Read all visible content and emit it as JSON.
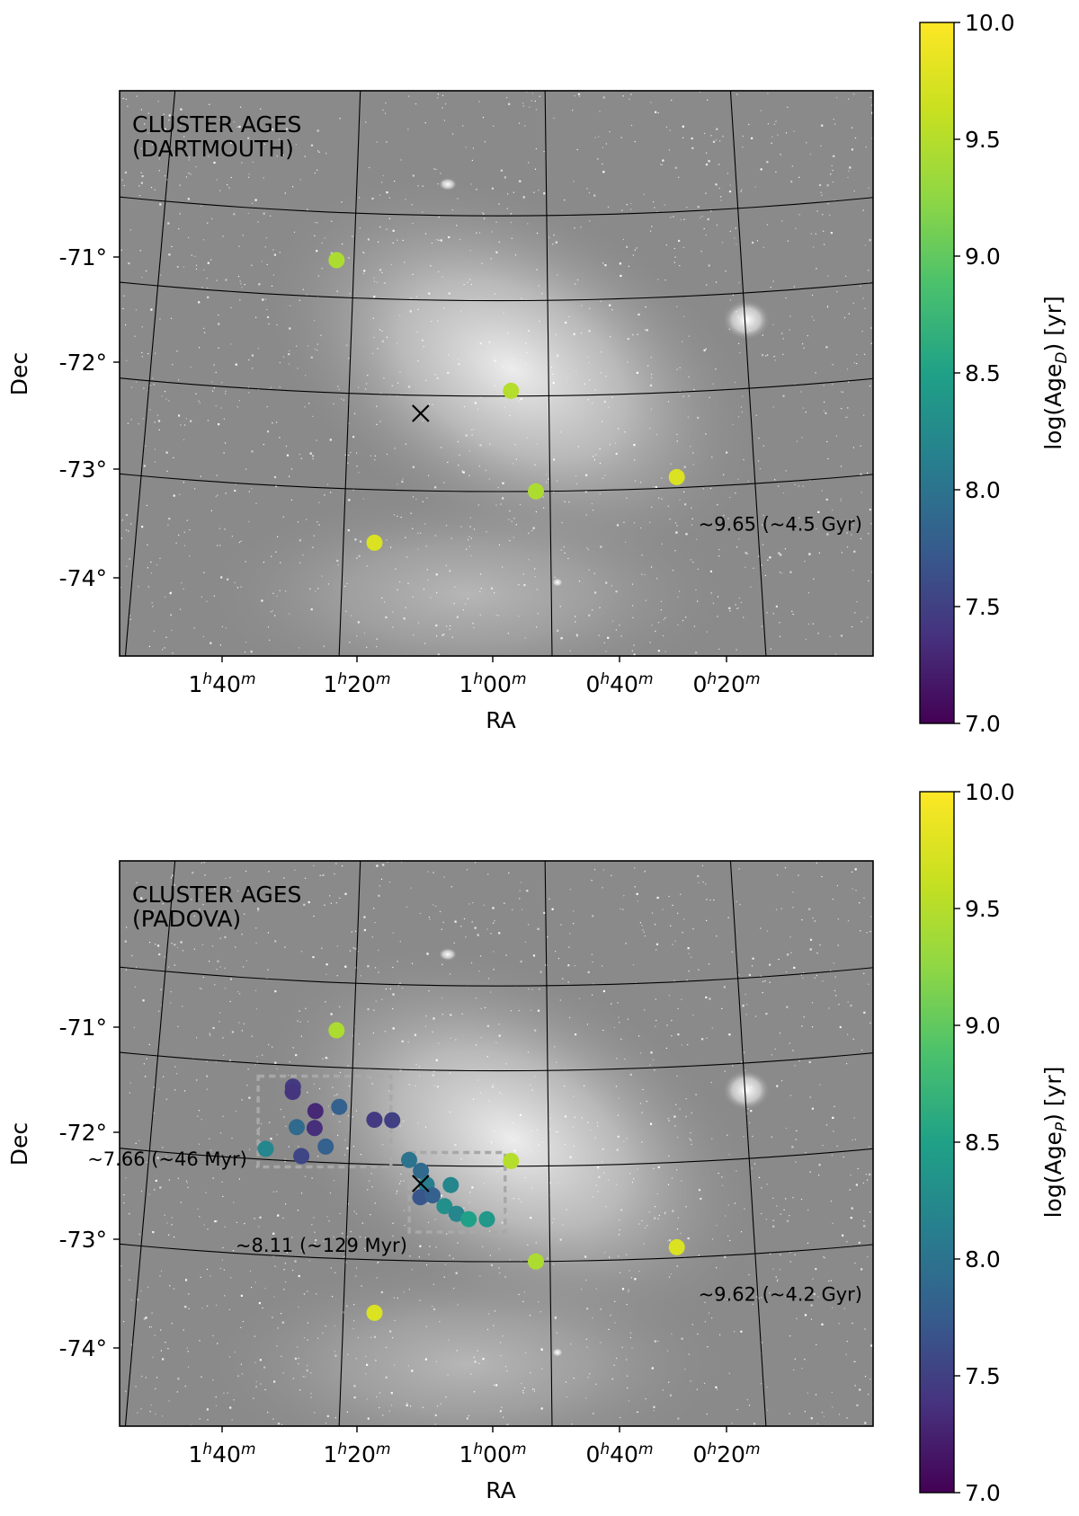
{
  "chart_data": [
    {
      "type": "scatter",
      "panel_label": [
        "CLUSTER AGES",
        "(DARTMOUTH)"
      ],
      "xlabel": "RA",
      "ylabel": "Dec",
      "x_ticks": [
        {
          "h": "1",
          "m": "40"
        },
        {
          "h": "1",
          "m": "20"
        },
        {
          "h": "1",
          "m": "00"
        },
        {
          "h": "0",
          "m": "40"
        },
        {
          "h": "0",
          "m": "20"
        }
      ],
      "y_ticks": [
        "-71°",
        "-72°",
        "-73°",
        "-74°"
      ],
      "colorbar": {
        "label_prefix": "log(Age",
        "label_sub": "D",
        "label_suffix": ") [yr]",
        "range": [
          7.0,
          10.0
        ],
        "ticks": [
          "10.0",
          "9.5",
          "9.0",
          "8.5",
          "8.0",
          "7.5",
          "7.0"
        ]
      },
      "center_marker": {
        "ra_h": 0.88,
        "dec": -72.37
      },
      "annotations": [
        {
          "text": "~9.65 (~4.5 Gyr)",
          "anchor": "right",
          "ra_h": 0.165,
          "dec": -73.55
        }
      ],
      "boxes": [],
      "points": [
        {
          "ra_h": 1.03,
          "dec": -70.95,
          "log_age": 9.45
        },
        {
          "ra_h": 0.73,
          "dec": -72.15,
          "log_age": 9.5
        },
        {
          "ra_h": 0.69,
          "dec": -73.1,
          "log_age": 9.45
        },
        {
          "ra_h": 0.46,
          "dec": -73.0,
          "log_age": 9.75
        },
        {
          "ra_h": 0.0,
          "dec": -73.1,
          "log_age": 9.7
        },
        {
          "ra_h": 0.95,
          "dec": -73.6,
          "log_age": 9.75
        },
        {
          "ra_h": 1.82,
          "dec": -73.65,
          "log_age": 9.5
        }
      ]
    },
    {
      "type": "scatter",
      "panel_label": [
        "CLUSTER AGES",
        "(PADOVA)"
      ],
      "xlabel": "RA",
      "ylabel": "Dec",
      "x_ticks": [
        {
          "h": "1",
          "m": "40"
        },
        {
          "h": "1",
          "m": "20"
        },
        {
          "h": "1",
          "m": "00"
        },
        {
          "h": "0",
          "m": "40"
        },
        {
          "h": "0",
          "m": "20"
        }
      ],
      "y_ticks": [
        "-71°",
        "-72°",
        "-73°",
        "-74°"
      ],
      "colorbar": {
        "label_prefix": "log(Age",
        "label_sub": "P",
        "label_suffix": ") [yr]",
        "range": [
          7.0,
          10.0
        ],
        "ticks": [
          "10.0",
          "9.5",
          "9.0",
          "8.5",
          "8.0",
          "7.5",
          "7.0"
        ]
      },
      "center_marker": {
        "ra_h": 0.88,
        "dec": -72.37
      },
      "annotations": [
        {
          "text": "~7.66 (~46 Myr)",
          "anchor": "right",
          "ra_h": 1.17,
          "dec": -72.2
        },
        {
          "text": "~8.11 (~129 Myr)",
          "anchor": "right",
          "ra_h": 0.9,
          "dec": -72.95
        },
        {
          "text": "~9.62 (~4.2 Gyr)",
          "anchor": "right",
          "ra_h": 0.165,
          "dec": -73.55
        }
      ],
      "boxes": [
        {
          "ra_min": 0.93,
          "ra_max": 1.16,
          "dec_min": -72.22,
          "dec_max": -71.42
        },
        {
          "ra_min": 0.74,
          "ra_max": 0.9,
          "dec_min": -72.82,
          "dec_max": -72.08
        }
      ],
      "points": [
        {
          "ra_h": 1.1,
          "dec": -71.5,
          "log_age": 7.45
        },
        {
          "ra_h": 1.1,
          "dec": -71.55,
          "log_age": 7.4
        },
        {
          "ra_h": 1.06,
          "dec": -71.72,
          "log_age": 7.3
        },
        {
          "ra_h": 1.02,
          "dec": -71.67,
          "log_age": 7.8
        },
        {
          "ra_h": 0.96,
          "dec": -71.78,
          "log_age": 7.45
        },
        {
          "ra_h": 0.93,
          "dec": -71.78,
          "log_age": 7.5
        },
        {
          "ra_h": 1.09,
          "dec": -71.88,
          "log_age": 7.9
        },
        {
          "ra_h": 1.06,
          "dec": -71.88,
          "log_age": 7.35
        },
        {
          "ra_h": 1.04,
          "dec": -72.05,
          "log_age": 7.8
        },
        {
          "ra_h": 1.08,
          "dec": -72.15,
          "log_age": 7.55
        },
        {
          "ra_h": 1.14,
          "dec": -72.1,
          "log_age": 8.2
        },
        {
          "ra_h": 0.9,
          "dec": -72.15,
          "log_age": 8.0
        },
        {
          "ra_h": 0.88,
          "dec": -72.25,
          "log_age": 7.9
        },
        {
          "ra_h": 0.87,
          "dec": -72.38,
          "log_age": 8.1
        },
        {
          "ra_h": 0.83,
          "dec": -72.38,
          "log_age": 8.2
        },
        {
          "ra_h": 0.88,
          "dec": -72.5,
          "log_age": 7.7
        },
        {
          "ra_h": 0.86,
          "dec": -72.48,
          "log_age": 7.8
        },
        {
          "ra_h": 0.84,
          "dec": -72.58,
          "log_age": 8.3
        },
        {
          "ra_h": 0.82,
          "dec": -72.65,
          "log_age": 8.2
        },
        {
          "ra_h": 0.8,
          "dec": -72.7,
          "log_age": 8.5
        },
        {
          "ra_h": 0.77,
          "dec": -72.7,
          "log_age": 8.4
        },
        {
          "ra_h": 0.73,
          "dec": -72.15,
          "log_age": 9.5
        },
        {
          "ra_h": 1.03,
          "dec": -70.95,
          "log_age": 9.45
        },
        {
          "ra_h": 0.69,
          "dec": -73.1,
          "log_age": 9.45
        },
        {
          "ra_h": 0.46,
          "dec": -73.0,
          "log_age": 9.75
        },
        {
          "ra_h": 0.0,
          "dec": -73.1,
          "log_age": 9.7
        },
        {
          "ra_h": 0.95,
          "dec": -73.6,
          "log_age": 9.75
        },
        {
          "ra_h": 1.82,
          "dec": -73.65,
          "log_age": 9.5
        }
      ]
    }
  ]
}
